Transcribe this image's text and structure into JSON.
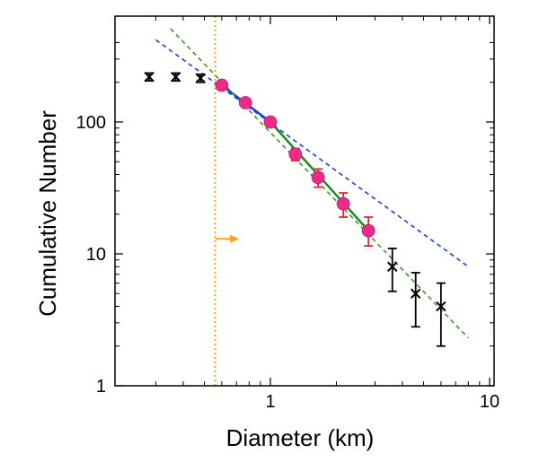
{
  "chart_data": {
    "type": "scatter",
    "title": "",
    "xlabel": "Diameter (km)",
    "ylabel": "Cumulative Number",
    "x_scale": "log",
    "y_scale": "log",
    "xlim": [
      0.2,
      10
    ],
    "ylim": [
      1,
      500
    ],
    "x_ticks": [
      {
        "value": 1,
        "label": "1"
      },
      {
        "value": 10,
        "label": "10"
      }
    ],
    "y_ticks": [
      {
        "value": 1,
        "label": "1"
      },
      {
        "value": 10,
        "label": "10"
      },
      {
        "value": 100,
        "label": "100"
      }
    ],
    "grid": false,
    "legend": "none",
    "series": [
      {
        "marker": "x",
        "color": "#000000",
        "points": [
          {
            "x": 0.28,
            "y": 220,
            "err_low": 205,
            "err_high": 235
          },
          {
            "x": 0.37,
            "y": 220,
            "err_low": 205,
            "err_high": 235
          },
          {
            "x": 0.48,
            "y": 215,
            "err_low": 200,
            "err_high": 230
          },
          {
            "x": 3.6,
            "y": 8,
            "err_low": 5.2,
            "err_high": 11
          },
          {
            "x": 4.6,
            "y": 5,
            "err_low": 2.8,
            "err_high": 7.2
          },
          {
            "x": 6.0,
            "y": 4,
            "err_low": 2,
            "err_high": 6
          }
        ]
      },
      {
        "marker": "circle",
        "color": "#ee2a88",
        "error_color": "#e8262c",
        "points": [
          {
            "x": 0.6,
            "y": 190,
            "err_low": 180,
            "err_high": 200
          },
          {
            "x": 0.77,
            "y": 140,
            "err_low": 133,
            "err_high": 148
          },
          {
            "x": 1.0,
            "y": 100,
            "err_low": 93,
            "err_high": 107
          },
          {
            "x": 1.3,
            "y": 57,
            "err_low": 51,
            "err_high": 63
          },
          {
            "x": 1.65,
            "y": 38,
            "err_low": 32,
            "err_high": 44
          },
          {
            "x": 2.15,
            "y": 24,
            "err_low": 19,
            "err_high": 29
          },
          {
            "x": 2.8,
            "y": 15,
            "err_low": 11.5,
            "err_high": 19
          }
        ]
      }
    ],
    "fit_lines": [
      {
        "style": "solid",
        "color": "#1b3fd6",
        "x": [
          0.6,
          1.0
        ],
        "y": [
          190,
          100
        ]
      },
      {
        "style": "solid",
        "color": "#1e8a22",
        "x": [
          1.0,
          2.8
        ],
        "y": [
          100,
          15
        ]
      },
      {
        "style": "dashed",
        "color": "#1b3fd6",
        "x": [
          0.3,
          8.0
        ],
        "y": [
          420,
          8
        ]
      },
      {
        "style": "dashed",
        "color": "#3a9a22",
        "x": [
          0.35,
          8.0
        ],
        "y": [
          510,
          2.3
        ]
      }
    ],
    "threshold": {
      "x": 0.56,
      "color": "#f5a31a",
      "style": "dotted"
    },
    "arrow": {
      "x_start": 0.56,
      "x_end": 0.72,
      "y": 13,
      "color": "#f5a31a"
    }
  }
}
